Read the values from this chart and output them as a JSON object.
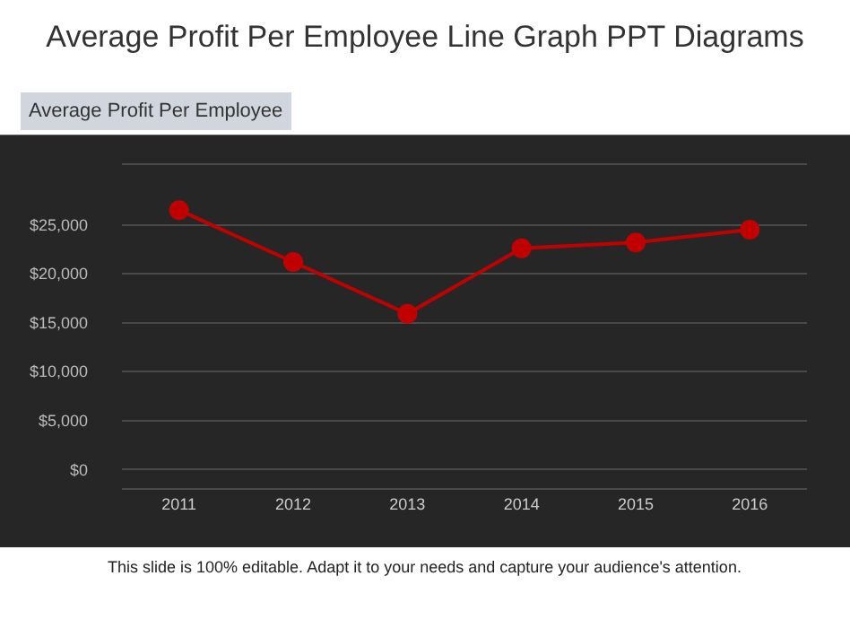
{
  "chart_data": {
    "type": "line",
    "title": "Average Profit Per Employee Line Graph PPT Diagrams",
    "subtitle": "Average Profit Per Employee",
    "categories": [
      "2011",
      "2012",
      "2013",
      "2014",
      "2015",
      "2016"
    ],
    "series": [
      {
        "color": "#c00000",
        "values": [
          26500,
          21200,
          15900,
          22600,
          23200,
          24500
        ]
      }
    ],
    "ylim": [
      -1900,
      31100
    ],
    "yticks": [
      {
        "value": 0,
        "label": "$0"
      },
      {
        "value": 5000,
        "label": "$5,000"
      },
      {
        "value": 10000,
        "label": "$10,000"
      },
      {
        "value": 15000,
        "label": "$15,000"
      },
      {
        "value": 20000,
        "label": "$20,000"
      },
      {
        "value": 25000,
        "label": "$25,000"
      }
    ],
    "grid": "y",
    "marker": "circle",
    "line_style": "solid",
    "annotations": [
      "This slide is 100% editable. Adapt it to your needs and capture your audience's attention."
    ]
  }
}
